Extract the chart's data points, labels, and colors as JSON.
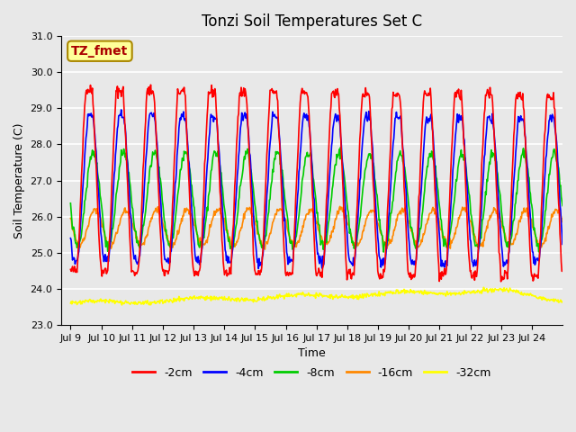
{
  "title": "Tonzi Soil Temperatures Set C",
  "xlabel": "Time",
  "ylabel": "Soil Temperature (C)",
  "annotation": "TZ_fmet",
  "ylim": [
    23.0,
    31.0
  ],
  "yticks": [
    23.0,
    24.0,
    25.0,
    26.0,
    27.0,
    28.0,
    29.0,
    30.0,
    31.0
  ],
  "xtick_labels": [
    "Jul 9",
    "Jul 10",
    "Jul 11",
    "Jul 12",
    "Jul 13",
    "Jul 14",
    "Jul 15",
    "Jul 16",
    "Jul 17",
    "Jul 18",
    "Jul 19",
    "Jul 20",
    "Jul 21",
    "Jul 22",
    "Jul 23",
    "Jul 24"
  ],
  "series_colors": [
    "#ff0000",
    "#0000ff",
    "#00cc00",
    "#ff8800",
    "#ffff00"
  ],
  "series_labels": [
    "-2cm",
    "-4cm",
    "-8cm",
    "-16cm",
    "-32cm"
  ],
  "background_color": "#e8e8e8",
  "plot_bg_color": "#e8e8e8",
  "grid_color": "#ffffff",
  "annotation_bg": "#ffff99",
  "annotation_fg": "#aa0000",
  "annotation_edge": "#aa8800",
  "n_days": 16,
  "points_per_day": 48
}
